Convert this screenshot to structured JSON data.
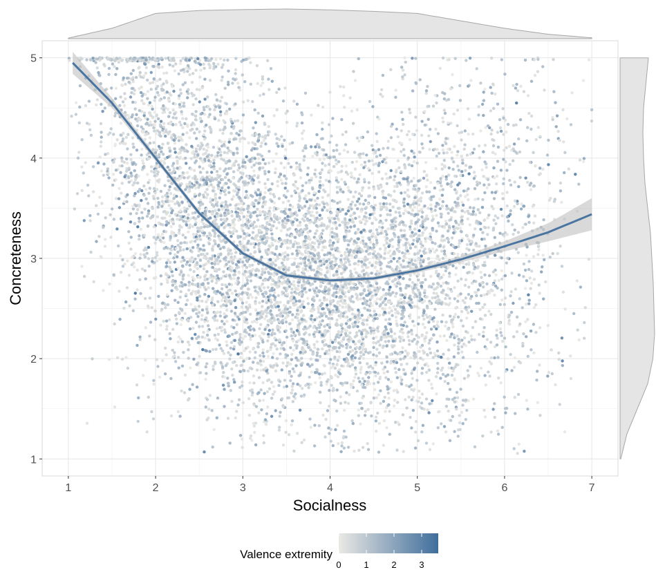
{
  "chart_data": {
    "type": "scatter",
    "title": "",
    "xlabel": "Socialness",
    "ylabel": "Concreteness",
    "xlim": [
      0.7,
      7.3
    ],
    "ylim": [
      0.83,
      5.17
    ],
    "x_ticks": [
      1,
      2,
      3,
      4,
      5,
      6,
      7
    ],
    "y_ticks": [
      1,
      2,
      3,
      4,
      5
    ],
    "grid": true,
    "point_count_approx": 7000,
    "point_color_variable": "Valence extremity",
    "smooth_curve": {
      "x": [
        1.05,
        1.5,
        2.0,
        2.5,
        3.0,
        3.5,
        4.0,
        4.5,
        5.0,
        5.5,
        6.0,
        6.5,
        7.0
      ],
      "y": [
        4.95,
        4.55,
        4.0,
        3.45,
        3.05,
        2.83,
        2.78,
        2.8,
        2.88,
        2.99,
        3.12,
        3.26,
        3.44
      ],
      "ci_halfwidth": [
        0.11,
        0.05,
        0.03,
        0.025,
        0.02,
        0.02,
        0.02,
        0.02,
        0.025,
        0.03,
        0.05,
        0.09,
        0.16
      ],
      "color": "#4a75a1",
      "ci_color": "#bfbfbf"
    },
    "marginal_density_x": {
      "x": [
        1.0,
        1.5,
        2.0,
        2.5,
        3.0,
        3.5,
        4.0,
        4.5,
        5.0,
        5.5,
        6.0,
        6.5,
        7.0
      ],
      "density": [
        0.02,
        0.35,
        0.85,
        0.95,
        0.98,
        1.0,
        0.97,
        0.92,
        0.85,
        0.6,
        0.35,
        0.15,
        0.03
      ]
    },
    "marginal_density_y": {
      "y": [
        1.0,
        1.25,
        1.5,
        1.75,
        2.0,
        2.25,
        2.5,
        2.75,
        3.0,
        3.25,
        3.5,
        3.75,
        4.0,
        4.25,
        4.5,
        4.75,
        5.0
      ],
      "density": [
        0.02,
        0.2,
        0.5,
        0.8,
        0.95,
        1.0,
        0.98,
        0.96,
        0.92,
        0.88,
        0.8,
        0.72,
        0.68,
        0.66,
        0.68,
        0.75,
        0.82
      ]
    },
    "legend": {
      "title": "Valence extremity",
      "position": "bottom",
      "type": "colorbar",
      "range": [
        0,
        3.6
      ],
      "ticks": [
        0,
        1,
        2,
        3
      ],
      "low_color": "#ebe9e4",
      "high_color": "#3f6e9c"
    },
    "colors": {
      "panel_border": "#d9d9d9",
      "grid_major": "#e6e6e6",
      "grid_minor": "#f2f2f2",
      "density_fill": "#e5e5e5",
      "density_stroke": "#a6a6a6"
    }
  }
}
